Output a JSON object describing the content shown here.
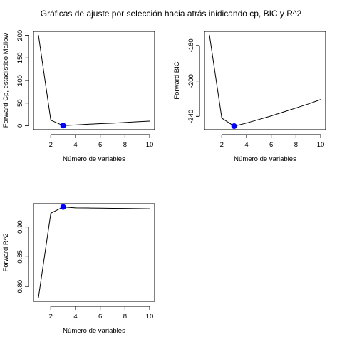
{
  "figure": {
    "title": "Gráficas de ajuste por selección hacia atrás inidicando cp, BIC y R^2"
  },
  "chart_data": [
    {
      "type": "line",
      "xlabel": "Número de variables",
      "ylabel": "Forward Cp, estadístico Mallow",
      "x": [
        1,
        2,
        3,
        4,
        5,
        6,
        7,
        8,
        9,
        10
      ],
      "values": [
        201,
        12,
        0,
        1.5,
        3,
        4.5,
        5.5,
        7,
        8.5,
        10
      ],
      "highlight": {
        "x": 3,
        "y": 0,
        "color": "#0000ff"
      },
      "xlim": [
        0.6,
        10.4
      ],
      "ylim": [
        -9,
        209
      ],
      "xticks": [
        2,
        4,
        6,
        8,
        10
      ],
      "yticks": [
        0,
        50,
        100,
        150,
        200
      ],
      "ytick_labels": [
        "0",
        "50",
        "100",
        "150",
        "200"
      ],
      "line_color": "#000000"
    },
    {
      "type": "line",
      "xlabel": "Número de variables",
      "ylabel": "Forward BIC",
      "x": [
        1,
        2,
        3,
        4,
        5,
        6,
        7,
        8,
        9,
        10
      ],
      "values": [
        -148,
        -242,
        -251,
        -247.5,
        -243.5,
        -239.5,
        -235,
        -230.5,
        -226,
        -221
      ],
      "highlight": {
        "x": 3,
        "y": -251,
        "color": "#0000ff"
      },
      "xlim": [
        0.6,
        10.4
      ],
      "ylim": [
        -255,
        -144
      ],
      "xticks": [
        2,
        4,
        6,
        8,
        10
      ],
      "yticks": [
        -240,
        -200,
        -160
      ],
      "ytick_labels": [
        "-240",
        "-200",
        "-160"
      ],
      "line_color": "#000000"
    },
    {
      "type": "line",
      "xlabel": "Número de variables",
      "ylabel": "Forward R^2",
      "x": [
        1,
        2,
        3,
        4,
        5,
        6,
        7,
        8,
        9,
        10
      ],
      "values": [
        0.781,
        0.923,
        0.9335,
        0.932,
        0.9318,
        0.9315,
        0.9312,
        0.931,
        0.9308,
        0.9305
      ],
      "highlight": {
        "x": 3,
        "y": 0.9335,
        "color": "#0000ff"
      },
      "xlim": [
        0.6,
        10.4
      ],
      "ylim": [
        0.775,
        0.939
      ],
      "xticks": [
        2,
        4,
        6,
        8,
        10
      ],
      "yticks": [
        0.8,
        0.85,
        0.9
      ],
      "ytick_labels": [
        "0.80",
        "0.85",
        "0.90"
      ],
      "line_color": "#000000"
    }
  ]
}
